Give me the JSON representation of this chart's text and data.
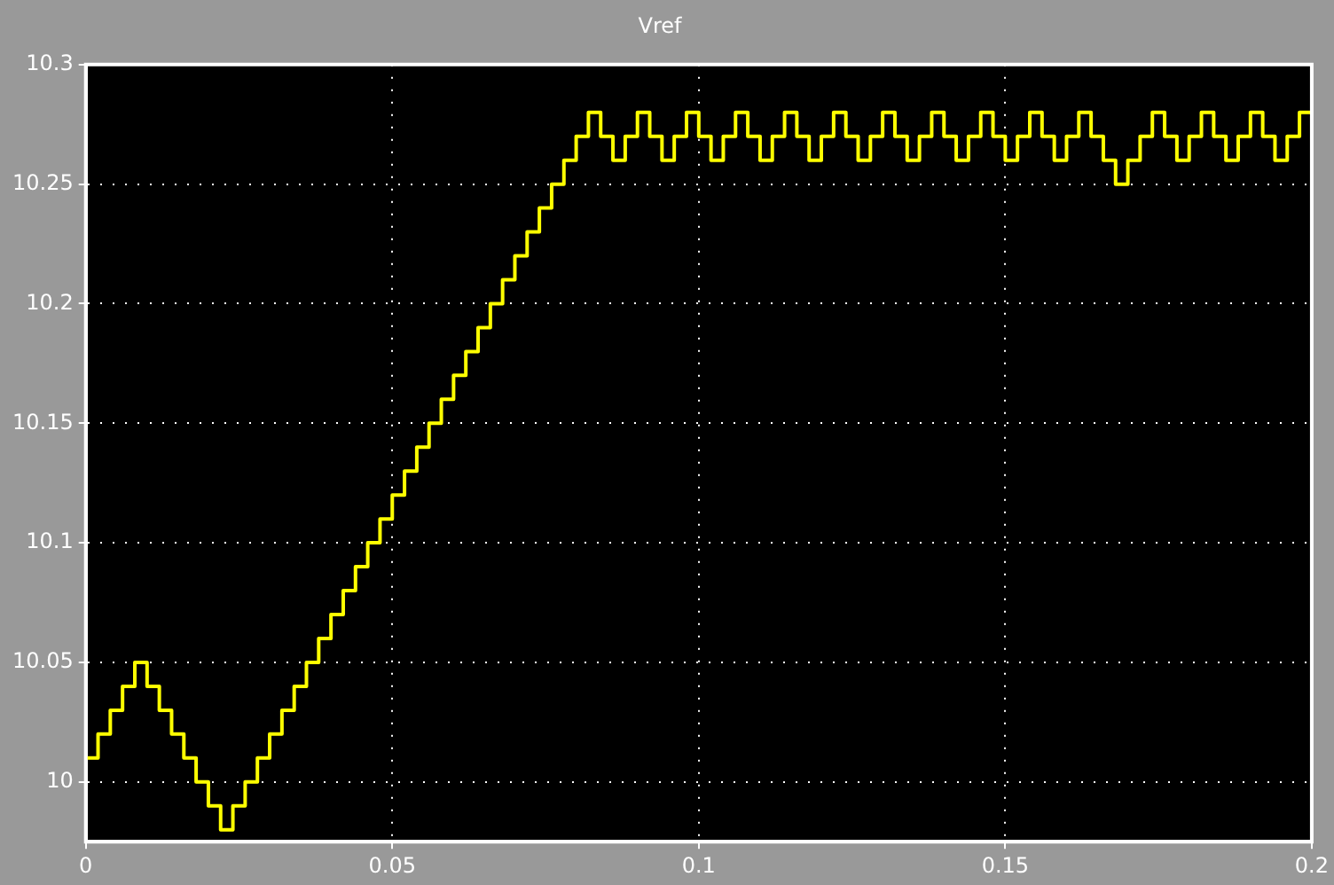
{
  "chart_data": {
    "type": "step",
    "title": "Vref",
    "x": [
      0,
      0.002,
      0.004,
      0.006,
      0.008,
      0.01,
      0.012,
      0.014,
      0.016,
      0.018,
      0.02,
      0.022,
      0.024,
      0.026,
      0.028,
      0.03,
      0.032,
      0.034,
      0.036,
      0.038,
      0.04,
      0.042,
      0.044,
      0.046,
      0.048,
      0.05,
      0.052,
      0.054,
      0.056,
      0.058,
      0.06,
      0.062,
      0.064,
      0.066,
      0.068,
      0.07,
      0.072,
      0.074,
      0.076,
      0.078,
      0.08,
      0.082,
      0.084,
      0.086,
      0.088,
      0.09,
      0.092,
      0.094,
      0.096,
      0.098,
      0.1,
      0.102,
      0.104,
      0.106,
      0.108,
      0.11,
      0.112,
      0.114,
      0.116,
      0.118,
      0.12,
      0.122,
      0.124,
      0.126,
      0.128,
      0.13,
      0.132,
      0.134,
      0.136,
      0.138,
      0.14,
      0.142,
      0.144,
      0.146,
      0.148,
      0.15,
      0.152,
      0.154,
      0.156,
      0.158,
      0.16,
      0.162,
      0.164,
      0.166,
      0.168,
      0.17,
      0.172,
      0.174,
      0.176,
      0.178,
      0.18,
      0.182,
      0.184,
      0.186,
      0.188,
      0.19,
      0.192,
      0.194,
      0.196,
      0.198,
      0.2
    ],
    "series": [
      {
        "color": "#ffff00",
        "values": [
          10.01,
          10.02,
          10.03,
          10.04,
          10.05,
          10.04,
          10.03,
          10.02,
          10.01,
          10.0,
          9.99,
          9.98,
          9.99,
          10.0,
          10.01,
          10.02,
          10.03,
          10.04,
          10.05,
          10.06,
          10.07,
          10.08,
          10.09,
          10.1,
          10.11,
          10.12,
          10.13,
          10.14,
          10.15,
          10.16,
          10.17,
          10.18,
          10.19,
          10.2,
          10.21,
          10.22,
          10.23,
          10.24,
          10.25,
          10.26,
          10.27,
          10.28,
          10.27,
          10.26,
          10.27,
          10.28,
          10.27,
          10.26,
          10.27,
          10.28,
          10.27,
          10.26,
          10.27,
          10.28,
          10.27,
          10.26,
          10.27,
          10.28,
          10.27,
          10.26,
          10.27,
          10.28,
          10.27,
          10.26,
          10.27,
          10.28,
          10.27,
          10.26,
          10.27,
          10.28,
          10.27,
          10.26,
          10.27,
          10.28,
          10.27,
          10.26,
          10.27,
          10.28,
          10.27,
          10.26,
          10.27,
          10.28,
          10.27,
          10.26,
          10.25,
          10.26,
          10.27,
          10.28,
          10.27,
          10.26,
          10.27,
          10.28,
          10.27,
          10.26,
          10.27,
          10.28,
          10.27,
          10.26,
          10.27,
          10.28,
          10.28
        ]
      }
    ],
    "xlim": [
      0,
      0.2
    ],
    "xticks": [
      0,
      0.05,
      0.1,
      0.15,
      0.2
    ],
    "ylim": [
      9.975,
      10.3
    ],
    "yticks": [
      10,
      10.05,
      10.1,
      10.15,
      10.2,
      10.25,
      10.3
    ],
    "grid": true
  }
}
